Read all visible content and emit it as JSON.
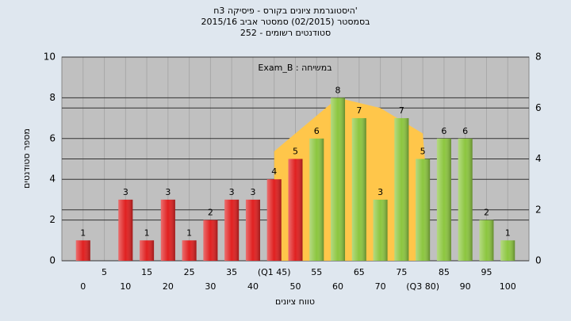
{
  "chart_data": {
    "type": "bar",
    "title": "היסטוגרמת ציונים בקורס - פיסיקה 3ח'",
    "subtitle": [
      "בסמסטר  (02/2015)  סמסטר אביב 2015/16",
      "252 - סטודנטים רשומים"
    ],
    "annotation": "Exam_B : במשיחה",
    "x_label": "טווח ציונים",
    "y_label": "מספר סטודנטים",
    "x": [
      0,
      5,
      10,
      15,
      20,
      25,
      30,
      35,
      40,
      45,
      50,
      55,
      60,
      65,
      70,
      75,
      80,
      85,
      90,
      95,
      100
    ],
    "values": [
      1,
      0,
      3,
      1,
      3,
      1,
      2,
      3,
      3,
      4,
      5,
      6,
      8,
      7,
      3,
      7,
      5,
      6,
      6,
      2,
      1
    ],
    "colors": [
      "#e02020",
      "#e02020",
      "#e02020",
      "#e02020",
      "#e02020",
      "#e02020",
      "#e02020",
      "#e02020",
      "#e02020",
      "#e02020",
      "#e02020",
      "#8cc63f",
      "#8cc63f",
      "#8cc63f",
      "#8cc63f",
      "#8cc63f",
      "#8cc63f",
      "#8cc63f",
      "#8cc63f",
      "#8cc63f",
      "#8cc63f"
    ],
    "area": {
      "color": "#ffc64a",
      "axis": "y2",
      "x": [
        45,
        60,
        70,
        80,
        81.5
      ],
      "values": [
        4.3,
        6.4,
        6.0,
        5.0,
        1.8
      ]
    },
    "xlim": [
      -5,
      105
    ],
    "xticks": [
      0,
      5,
      10,
      15,
      20,
      25,
      30,
      35,
      40,
      {
        "value": 45,
        "label": "(Q1 45)"
      },
      50,
      55,
      60,
      65,
      70,
      75,
      {
        "value": 80,
        "label": "(Q3 80)"
      },
      85,
      90,
      95,
      100
    ],
    "ylim": [
      0,
      10
    ],
    "yticks": [
      0,
      2,
      4,
      6,
      8,
      10
    ],
    "y2lim": [
      0,
      8
    ],
    "y2ticks": [
      0,
      2,
      4,
      6,
      8
    ],
    "grid": true
  }
}
